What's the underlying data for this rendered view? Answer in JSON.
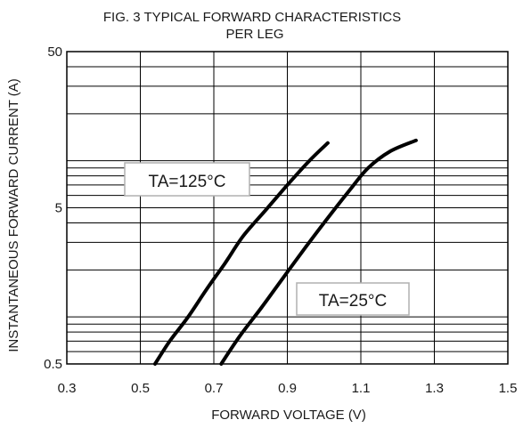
{
  "chart_data": {
    "type": "line",
    "title_line1": "FIG. 3 TYPICAL FORWARD CHARACTERISTICS",
    "title_line2": "PER LEG",
    "xlabel": "FORWARD VOLTAGE (V)",
    "ylabel": "INSTANTANEOUS FORWARD CURRENT (A)",
    "xlim": [
      0.3,
      1.5
    ],
    "ylim": [
      0.5,
      50
    ],
    "y_scale": "log",
    "grid": true,
    "x_ticks": [
      {
        "value": 0.3,
        "label": "0.3"
      },
      {
        "value": 0.5,
        "label": "0.5"
      },
      {
        "value": 0.7,
        "label": "0.7"
      },
      {
        "value": 0.9,
        "label": "0.9"
      },
      {
        "value": 1.1,
        "label": "1.1"
      },
      {
        "value": 1.3,
        "label": "1.3"
      },
      {
        "value": 1.5,
        "label": "1.5"
      }
    ],
    "y_ticks": [
      {
        "value": 0.5,
        "label": "0.5"
      },
      {
        "value": 5,
        "label": "5"
      },
      {
        "value": 50,
        "label": "50"
      }
    ],
    "y_gridlines": [
      0.5,
      0.6,
      0.7,
      0.8,
      0.9,
      1,
      2,
      3,
      4,
      5,
      6,
      7,
      8,
      9,
      10,
      20,
      30,
      40,
      50
    ],
    "x_gridlines": [
      0.3,
      0.5,
      0.7,
      0.9,
      1.1,
      1.3,
      1.5
    ],
    "series": [
      {
        "name": "TA=125°C",
        "x": [
          0.54,
          0.58,
          0.63,
          0.68,
          0.73,
          0.78,
          0.84,
          0.9,
          0.96,
          1.01
        ],
        "y": [
          0.5,
          0.7,
          1.0,
          1.5,
          2.2,
          3.3,
          4.8,
          7.0,
          10.0,
          13.0
        ]
      },
      {
        "name": "TA=25°C",
        "x": [
          0.72,
          0.77,
          0.83,
          0.89,
          0.95,
          1.01,
          1.07,
          1.12,
          1.18,
          1.25
        ],
        "y": [
          0.5,
          0.75,
          1.15,
          1.8,
          2.8,
          4.3,
          6.5,
          9.0,
          11.5,
          13.5
        ]
      }
    ],
    "annotations": [
      {
        "text": "TA=125°C",
        "series": 0
      },
      {
        "text": "TA=25°C",
        "series": 1
      }
    ]
  }
}
